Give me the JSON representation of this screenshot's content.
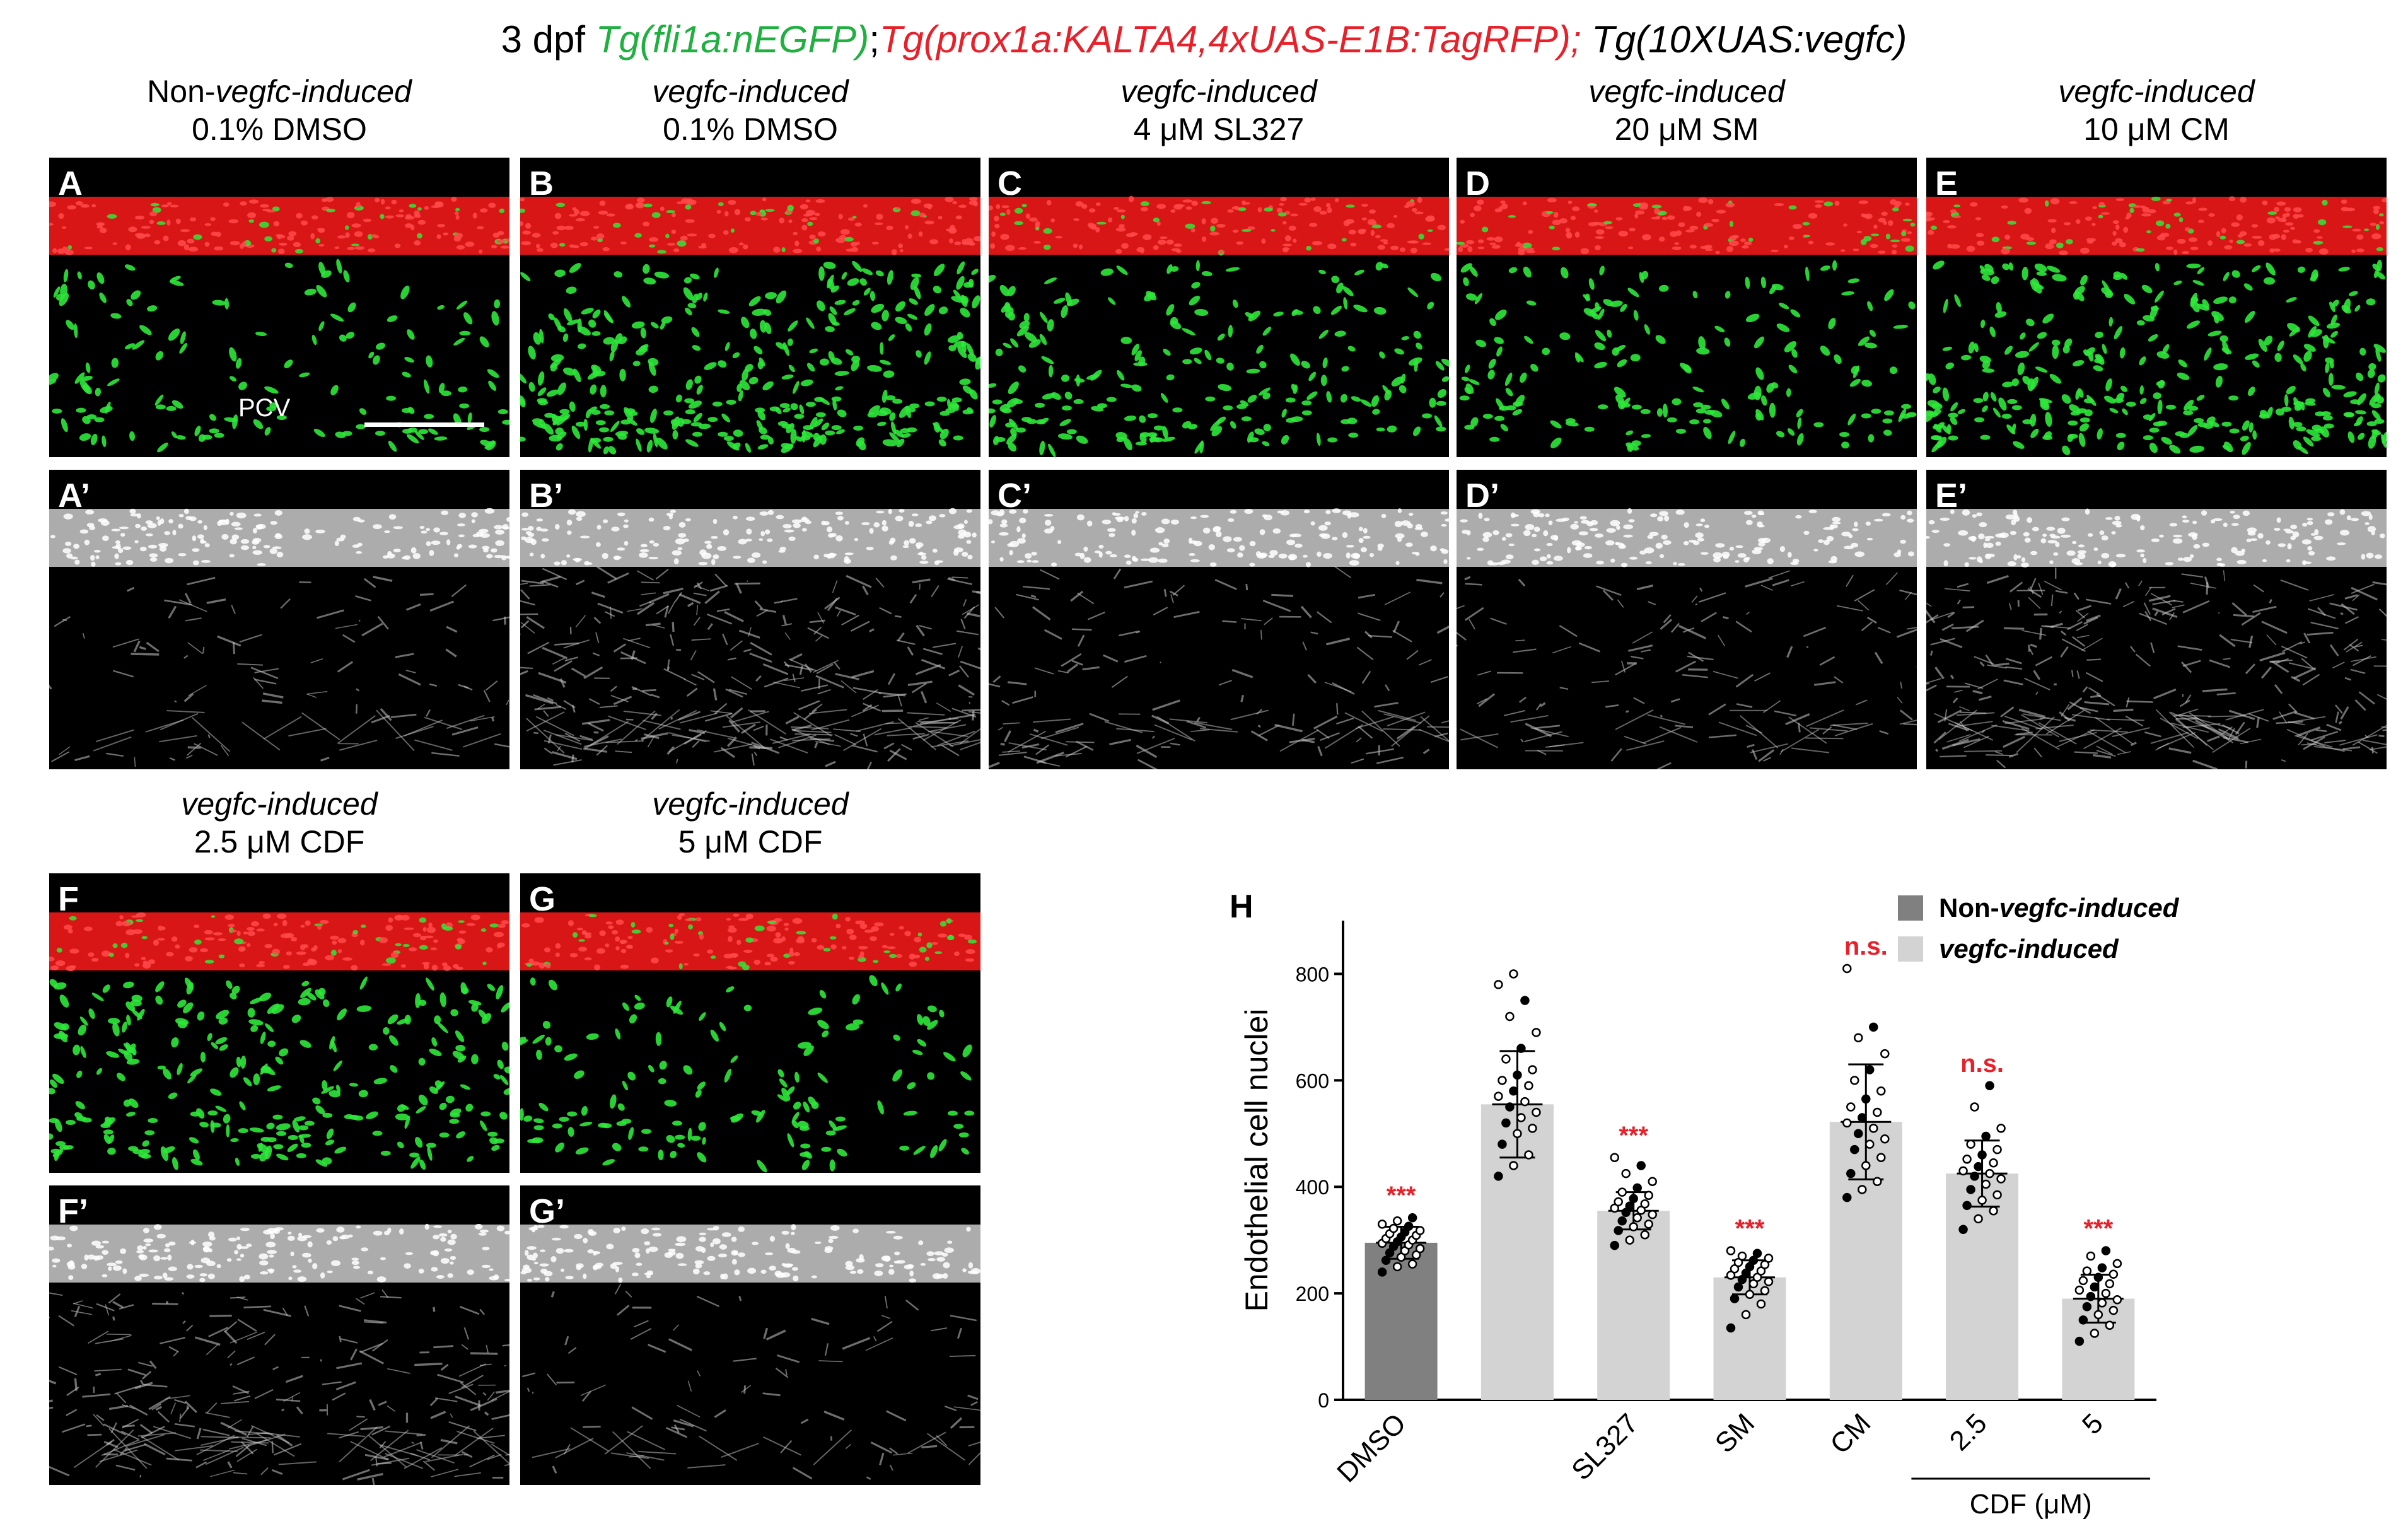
{
  "figure": {
    "title_parts": [
      {
        "text": "3 dpf ",
        "style": "plain"
      },
      {
        "text": "Tg(fli1a:nEGFP)",
        "style": "green"
      },
      {
        "text": ";",
        "style": "plain"
      },
      {
        "text": "Tg(prox1a:KALTA4,4xUAS-E1B:TagRFP)",
        "style": "red"
      },
      {
        "text": "; ",
        "style": "red"
      },
      {
        "text": "Tg(10XUAS:vegfc)",
        "style": "italic"
      }
    ],
    "columns": [
      {
        "line1_prefix": "Non-",
        "line1_italic": "vegfc-induced",
        "line2": "0.1% DMSO"
      },
      {
        "line1_prefix": "",
        "line1_italic": "vegfc-induced",
        "line2": "0.1% DMSO"
      },
      {
        "line1_prefix": "",
        "line1_italic": "vegfc-induced",
        "line2": "4 μM SL327"
      },
      {
        "line1_prefix": "",
        "line1_italic": "vegfc-induced",
        "line2": "20 μM SM"
      },
      {
        "line1_prefix": "",
        "line1_italic": "vegfc-induced",
        "line2": "10 μM CM"
      },
      {
        "line1_prefix": "",
        "line1_italic": "vegfc-induced",
        "line2": "2.5 μM CDF"
      },
      {
        "line1_prefix": "",
        "line1_italic": "vegfc-induced",
        "line2": "5 μM CDF"
      }
    ],
    "panels": [
      {
        "label": "A",
        "kind": "color",
        "vessel_density": 0.3
      },
      {
        "label": "B",
        "kind": "color",
        "vessel_density": 0.95
      },
      {
        "label": "C",
        "kind": "color",
        "vessel_density": 0.55
      },
      {
        "label": "D",
        "kind": "color",
        "vessel_density": 0.4
      },
      {
        "label": "E",
        "kind": "color",
        "vessel_density": 0.9
      },
      {
        "label": "A’",
        "kind": "gray",
        "vessel_density": 0.2
      },
      {
        "label": "B’",
        "kind": "gray",
        "vessel_density": 0.95
      },
      {
        "label": "C’",
        "kind": "gray",
        "vessel_density": 0.35
      },
      {
        "label": "D’",
        "kind": "gray",
        "vessel_density": 0.3
      },
      {
        "label": "E’",
        "kind": "gray",
        "vessel_density": 0.9
      },
      {
        "label": "F",
        "kind": "color",
        "vessel_density": 0.7
      },
      {
        "label": "G",
        "kind": "color",
        "vessel_density": 0.3
      },
      {
        "label": "F’",
        "kind": "gray",
        "vessel_density": 0.7
      },
      {
        "label": "G’",
        "kind": "gray",
        "vessel_density": 0.15
      }
    ],
    "pcv_label": "PCV",
    "colors": {
      "gfp": "#2ee83a",
      "rfp": "#ff1a1a",
      "bar_dark": "#808080",
      "bar_light": "#d3d3d3",
      "sig": "#e8202a"
    }
  },
  "chart_data": {
    "type": "bar",
    "panel_label": "H",
    "categories": [
      "DMSO",
      "",
      "SL327",
      "SM",
      "CM",
      "2.5",
      "5"
    ],
    "group_label": "CDF (μM)",
    "values": [
      295,
      555,
      355,
      230,
      522,
      425,
      190
    ],
    "sd": [
      30,
      100,
      35,
      32,
      108,
      62,
      45
    ],
    "groups": [
      "non",
      "ind",
      "ind",
      "ind",
      "ind",
      "ind",
      "ind"
    ],
    "significance": [
      "***",
      "",
      "***",
      "***",
      "n.s.",
      "n.s.",
      "***"
    ],
    "points": [
      [
        240,
        250,
        255,
        262,
        268,
        272,
        276,
        280,
        284,
        288,
        291,
        294,
        297,
        300,
        303,
        306,
        309,
        312,
        315,
        318,
        322,
        326,
        330,
        336,
        342
      ],
      [
        420,
        440,
        460,
        480,
        500,
        510,
        520,
        530,
        540,
        550,
        560,
        570,
        580,
        590,
        600,
        610,
        620,
        640,
        660,
        690,
        720,
        750,
        780,
        800
      ],
      [
        290,
        300,
        310,
        318,
        325,
        330,
        336,
        342,
        348,
        352,
        356,
        360,
        364,
        368,
        372,
        378,
        384,
        390,
        398,
        410,
        425,
        440,
        455
      ],
      [
        135,
        160,
        180,
        190,
        198,
        205,
        212,
        218,
        222,
        226,
        230,
        234,
        238,
        242,
        246,
        250,
        254,
        258,
        262,
        266,
        270,
        275,
        280
      ],
      [
        380,
        395,
        410,
        425,
        440,
        455,
        470,
        480,
        490,
        500,
        510,
        520,
        530,
        540,
        550,
        565,
        580,
        600,
        620,
        650,
        680,
        700,
        810
      ],
      [
        320,
        340,
        355,
        365,
        375,
        385,
        395,
        405,
        415,
        420,
        425,
        430,
        438,
        445,
        452,
        460,
        470,
        480,
        495,
        510,
        550,
        590
      ],
      [
        110,
        125,
        140,
        150,
        160,
        168,
        175,
        182,
        188,
        194,
        200,
        206,
        212,
        218,
        224,
        230,
        236,
        242,
        248,
        256,
        270,
        280
      ]
    ],
    "ylabel": "Endothelial cell nuclei",
    "yticks": [
      0,
      200,
      400,
      600,
      800
    ],
    "ylim": [
      0,
      900
    ],
    "legend": {
      "placement": "top-right",
      "items": [
        {
          "prefix": "Non-",
          "italic": "vegfc-induced",
          "group": "non"
        },
        {
          "prefix": "",
          "italic": "vegfc-induced",
          "group": "ind"
        }
      ]
    }
  }
}
